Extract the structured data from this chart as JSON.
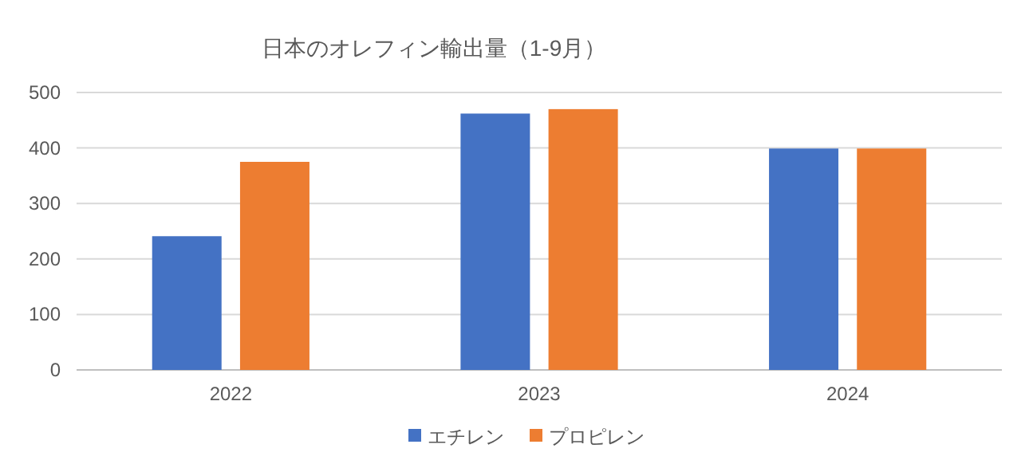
{
  "chart_data": {
    "type": "bar",
    "title": "日本のオレフィン輸出量（1-9月）",
    "categories": [
      "2022",
      "2023",
      "2024"
    ],
    "series": [
      {
        "name": "エチレン",
        "color": "#4472c4",
        "values": [
          241,
          462,
          399
        ]
      },
      {
        "name": "プロピレン",
        "color": "#ed7d31",
        "values": [
          375,
          470,
          399
        ]
      }
    ],
    "ylim": [
      0,
      500
    ],
    "yticks": [
      0,
      100,
      200,
      300,
      400,
      500
    ],
    "grid": "y",
    "legend": "bottom"
  }
}
